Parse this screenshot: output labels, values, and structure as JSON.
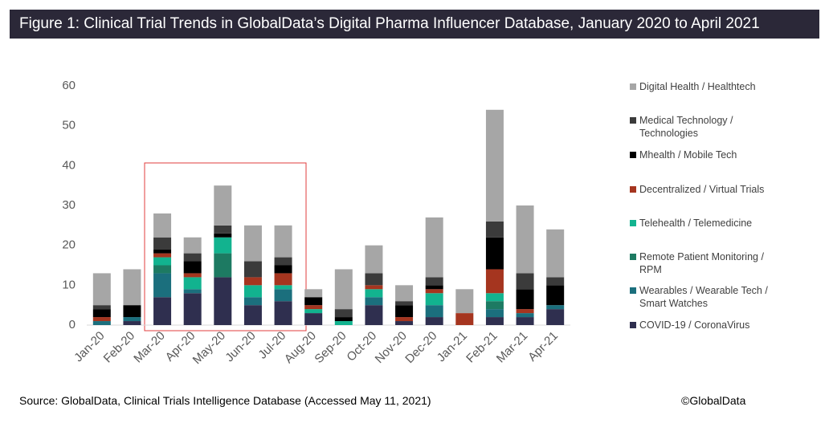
{
  "chart_data": {
    "type": "stacked-bar",
    "title": "Figure 1: Clinical Trial Trends in GlobalData’s Digital Pharma Influencer Database, January 2020 to April 2021",
    "categories": [
      "Jan-20",
      "Feb-20",
      "Mar-20",
      "Apr-20",
      "May-20",
      "Jun-20",
      "Jul-20",
      "Aug-20",
      "Sep-20",
      "Oct-20",
      "Nov-20",
      "Dec-20",
      "Jan-21",
      "Feb-21",
      "Mar-21",
      "Apr-21"
    ],
    "series": [
      {
        "name": "COVID-19 / CoronaVirus",
        "color": "#2f2f4f",
        "values": [
          0,
          1,
          7,
          8,
          12,
          5,
          6,
          3,
          0,
          5,
          1,
          2,
          0,
          2,
          2,
          4
        ]
      },
      {
        "name": "Wearables / Wearable Tech / Smart Watches",
        "color": "#1b6f7d",
        "values": [
          1,
          1,
          6,
          1,
          0,
          2,
          3,
          0,
          0,
          2,
          0,
          3,
          0,
          2,
          1,
          1
        ]
      },
      {
        "name": "Remote Patient Monitoring / RPM",
        "color": "#1d7a62",
        "values": [
          0,
          0,
          2,
          0,
          6,
          0,
          0,
          0,
          0,
          0,
          0,
          0,
          0,
          2,
          0,
          0
        ]
      },
      {
        "name": "Telehealth / Telemedicine",
        "color": "#12b38f",
        "values": [
          0,
          0,
          2,
          3,
          4,
          3,
          1,
          1,
          1,
          2,
          0,
          3,
          0,
          2,
          0,
          0
        ]
      },
      {
        "name": "Decentralized / Virtual Trials",
        "color": "#a5351f",
        "values": [
          1,
          0,
          1,
          1,
          0,
          2,
          3,
          1,
          0,
          1,
          1,
          1,
          3,
          6,
          1,
          0
        ]
      },
      {
        "name": "Mhealth / Mobile Tech",
        "color": "#000000",
        "values": [
          2,
          3,
          1,
          3,
          1,
          0,
          2,
          2,
          1,
          0,
          3,
          1,
          0,
          8,
          5,
          5
        ]
      },
      {
        "name": "Medical Technology / Technologies",
        "color": "#3b3b3b",
        "values": [
          1,
          0,
          3,
          2,
          2,
          4,
          2,
          0,
          2,
          3,
          1,
          2,
          0,
          4,
          4,
          2
        ]
      },
      {
        "name": "Digital Health / Healthtech",
        "color": "#a6a6a6",
        "values": [
          8,
          9,
          6,
          4,
          10,
          9,
          8,
          2,
          10,
          7,
          4,
          15,
          6,
          28,
          17,
          12
        ]
      }
    ],
    "ylim": [
      0,
      60
    ],
    "yticks": [
      0,
      10,
      20,
      30,
      40,
      50,
      60
    ],
    "source": "Source: GlobalData, Clinical Trials Intelligence Database (Accessed May 11, 2021)",
    "credit": "©GlobalData"
  }
}
